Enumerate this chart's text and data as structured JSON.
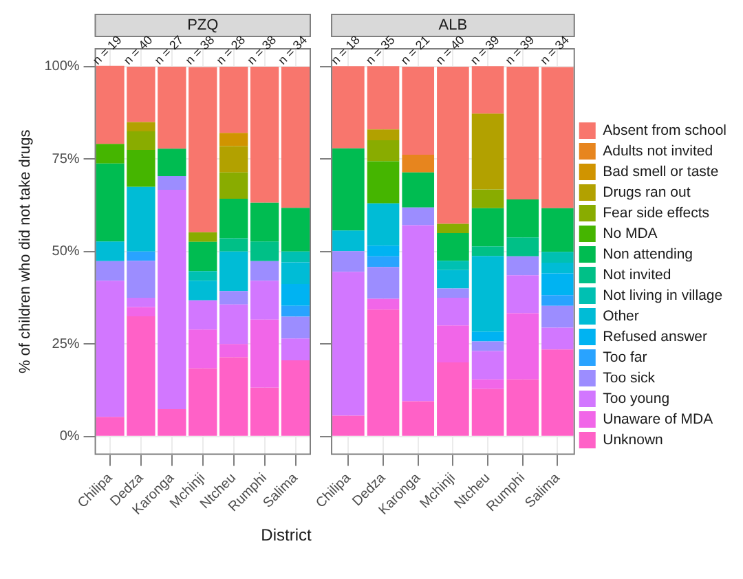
{
  "chart_data": [
    {
      "type": "bar",
      "title": "PZQ",
      "ylabel": "% of children who did not take drugs",
      "xlabel": "District",
      "stacked": true,
      "grid": true,
      "legend": false,
      "categories": [
        "Chilipa",
        "Dedza",
        "Karonga",
        "Mchinji",
        "Ntcheu",
        "Rumphi",
        "Salima"
      ],
      "ylim": [
        -5,
        105
      ],
      "yticks": [
        {
          "value": 0,
          "label": "0%"
        },
        {
          "value": 25,
          "label": "25%"
        },
        {
          "value": 50,
          "label": "50%"
        },
        {
          "value": 75,
          "label": "75%"
        },
        {
          "value": 100,
          "label": "100%"
        }
      ],
      "annotations": [
        {
          "text": "n = 19",
          "x": "Chilipa",
          "y": 100
        },
        {
          "text": "n = 40",
          "x": "Dedza",
          "y": 100
        },
        {
          "text": "n = 27",
          "x": "Karonga",
          "y": 100
        },
        {
          "text": "n = 38",
          "x": "Mchinji",
          "y": 100
        },
        {
          "text": "n = 28",
          "x": "Ntcheu",
          "y": 100
        },
        {
          "text": "n = 38",
          "x": "Rumphi",
          "y": 100
        },
        {
          "text": "n = 34",
          "x": "Salima",
          "y": 100
        }
      ],
      "series": [
        {
          "color": "#ff61c7",
          "values": [
            5.3,
            32.5,
            7.4,
            18.4,
            21.4,
            13.2,
            20.6
          ]
        },
        {
          "color": "#f166e8",
          "values": [
            0,
            2.5,
            0,
            10.5,
            3.6,
            18.4,
            0
          ]
        },
        {
          "color": "#d277ff",
          "values": [
            36.8,
            2.5,
            59.3,
            7.9,
            10.7,
            10.5,
            5.9
          ]
        },
        {
          "color": "#9c8dff",
          "values": [
            5.3,
            10,
            3.7,
            0,
            3.6,
            5.3,
            5.9
          ]
        },
        {
          "color": "#29a3ff",
          "values": [
            0,
            2.5,
            0,
            0,
            0,
            0,
            2.9
          ]
        },
        {
          "color": "#00b3f2",
          "values": [
            0,
            0,
            0,
            0,
            0,
            0,
            5.9
          ]
        },
        {
          "color": "#00bcd6",
          "values": [
            5.3,
            17.5,
            0,
            5.3,
            10.7,
            0,
            5.9
          ]
        },
        {
          "color": "#00c0b2",
          "values": [
            0,
            0,
            0,
            2.6,
            0,
            0,
            2.9
          ]
        },
        {
          "color": "#00c087",
          "values": [
            0,
            0,
            0,
            0,
            3.6,
            5.3,
            0
          ]
        },
        {
          "color": "#00bc51",
          "values": [
            21.1,
            0,
            7.4,
            7.9,
            10.7,
            10.5,
            11.8
          ]
        },
        {
          "color": "#45b500",
          "values": [
            5.3,
            10,
            0,
            0,
            0,
            0,
            0
          ]
        },
        {
          "color": "#89ac00",
          "values": [
            0,
            5,
            0,
            2.6,
            7.1,
            0,
            0
          ]
        },
        {
          "color": "#b2a100",
          "values": [
            0,
            2.5,
            0,
            0,
            7.1,
            0,
            0
          ]
        },
        {
          "color": "#d09400",
          "values": [
            0,
            0,
            0,
            0,
            3.6,
            0,
            0
          ]
        },
        {
          "color": "#e7851e",
          "values": [
            0,
            0,
            0,
            0,
            0,
            0,
            0
          ]
        },
        {
          "color": "#f8766d",
          "values": [
            21.1,
            15,
            22.2,
            44.7,
            17.9,
            36.8,
            38.2
          ]
        }
      ]
    },
    {
      "type": "bar",
      "title": "ALB",
      "stacked": true,
      "grid": true,
      "legend": "right",
      "tick_labels": "x",
      "categories": [
        "Chilipa",
        "Dedza",
        "Karonga",
        "Mchinji",
        "Ntcheu",
        "Rumphi",
        "Salima"
      ],
      "ylim": [
        -5,
        105
      ],
      "yticks": [
        {
          "value": 0,
          "label": null
        },
        {
          "value": 25,
          "label": null
        },
        {
          "value": 50,
          "label": null
        },
        {
          "value": 75,
          "label": null
        },
        {
          "value": 100,
          "label": null
        }
      ],
      "annotations": [
        {
          "text": "n = 18",
          "x": "Chilipa",
          "y": 100
        },
        {
          "text": "n = 35",
          "x": "Dedza",
          "y": 100
        },
        {
          "text": "n = 21",
          "x": "Karonga",
          "y": 100
        },
        {
          "text": "n = 40",
          "x": "Mchinji",
          "y": 100
        },
        {
          "text": "n = 39",
          "x": "Ntcheu",
          "y": 100
        },
        {
          "text": "n = 39",
          "x": "Rumphi",
          "y": 100
        },
        {
          "text": "n = 34",
          "x": "Salima",
          "y": 100
        }
      ],
      "series": [
        {
          "name": "Unknown",
          "color": "#ff61c7",
          "values": [
            5.6,
            34.3,
            9.5,
            20,
            12.8,
            15.4,
            23.5
          ]
        },
        {
          "name": "Unaware of MDA",
          "color": "#f166e8",
          "values": [
            0,
            2.9,
            0,
            10,
            2.6,
            17.9,
            0
          ]
        },
        {
          "name": "Too young",
          "color": "#d277ff",
          "values": [
            38.9,
            0,
            47.6,
            7.5,
            7.7,
            10.3,
            5.9
          ]
        },
        {
          "name": "Too sick",
          "color": "#9c8dff",
          "values": [
            5.6,
            8.6,
            4.8,
            2.5,
            2.6,
            5.1,
            5.9
          ]
        },
        {
          "name": "Too far",
          "color": "#29a3ff",
          "values": [
            0,
            2.9,
            0,
            0,
            0,
            0,
            2.9
          ]
        },
        {
          "name": "Refused answer",
          "color": "#00b3f2",
          "values": [
            0,
            2.9,
            0,
            0,
            2.6,
            0,
            5.9
          ]
        },
        {
          "name": "Other",
          "color": "#00bcd6",
          "values": [
            5.6,
            11.4,
            0,
            5,
            20.5,
            0,
            2.9
          ]
        },
        {
          "name": "Not living in village",
          "color": "#00c0b2",
          "values": [
            0,
            0,
            0,
            2.5,
            0,
            0,
            2.9
          ]
        },
        {
          "name": "Not invited",
          "color": "#00c087",
          "values": [
            0,
            0,
            0,
            0,
            2.6,
            5.1,
            0
          ]
        },
        {
          "name": "Non attending",
          "color": "#00bc51",
          "values": [
            22.2,
            0,
            9.5,
            7.5,
            10.3,
            10.3,
            11.8
          ]
        },
        {
          "name": "No MDA",
          "color": "#45b500",
          "values": [
            0,
            11.4,
            0,
            0,
            0,
            0,
            0
          ]
        },
        {
          "name": "Fear side effects",
          "color": "#89ac00",
          "values": [
            0,
            5.7,
            0,
            2.5,
            5.1,
            0,
            0
          ]
        },
        {
          "name": "Drugs ran out",
          "color": "#b2a100",
          "values": [
            0,
            2.9,
            0,
            0,
            20.5,
            0,
            0
          ]
        },
        {
          "name": "Bad smell or taste",
          "color": "#d09400",
          "values": [
            0,
            0,
            0,
            0,
            0,
            0,
            0
          ]
        },
        {
          "name": "Adults not invited",
          "color": "#e7851e",
          "values": [
            0,
            0,
            4.8,
            0,
            0,
            0,
            0
          ]
        },
        {
          "name": "Absent from school",
          "color": "#f8766d",
          "values": [
            22.2,
            17.1,
            23.8,
            42.5,
            12.8,
            35.9,
            38.2
          ]
        }
      ]
    }
  ]
}
